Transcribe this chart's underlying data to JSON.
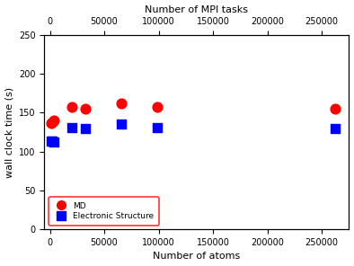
{
  "md_x": [
    1024,
    2048,
    4096,
    20480,
    32768,
    65536,
    98304,
    262144
  ],
  "md_y": [
    136,
    138,
    140,
    157,
    155,
    162,
    157,
    155
  ],
  "es_x": [
    1024,
    2048,
    4096,
    20480,
    32768,
    65536,
    98304,
    262144
  ],
  "es_y": [
    113,
    113,
    112,
    131,
    130,
    135,
    131,
    130
  ],
  "md_color": "#ff0000",
  "es_color": "#0000ff",
  "xlabel_bottom": "Number of atoms",
  "xlabel_top": "Number of MPI tasks",
  "ylabel": "wall clock time (s)",
  "xlim": [
    -5000,
    275000
  ],
  "ylim": [
    0,
    250
  ],
  "xticks_bottom": [
    0,
    50000,
    100000,
    150000,
    200000,
    250000
  ],
  "xticks_top": [
    0,
    50000,
    100000,
    150000,
    200000,
    250000
  ],
  "yticks": [
    0,
    50,
    100,
    150,
    200,
    250
  ],
  "legend_md_label": "MD",
  "legend_es_label": "Electronic Structure",
  "bg_color": "#ffffff",
  "marker_size_circle": 60,
  "marker_size_square": 55,
  "tick_fontsize": 7,
  "label_fontsize": 8
}
